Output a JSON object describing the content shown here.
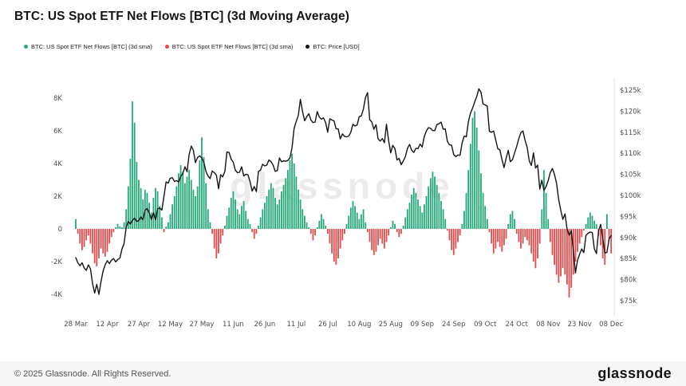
{
  "page": {
    "title": "BTC: US Spot ETF Net Flows [BTC] (3d Moving Average)",
    "watermark": "glassnode"
  },
  "legend": {
    "items": [
      {
        "label": "BTC: US Spot ETF Net Flows [BTC] (3d sma)",
        "color": "#24a878"
      },
      {
        "label": "BTC: US Spot ETF Net Flows [BTC] (3d sma)",
        "color": "#e14b4b"
      },
      {
        "label": "BTC: Price [USD]",
        "color": "#141414"
      }
    ]
  },
  "footer": {
    "copyright": "© 2025 Glassnode. All Rights Reserved.",
    "brand": "glassnode"
  },
  "chart_data": {
    "type": "bar+line",
    "title": "BTC: US Spot ETF Net Flows [BTC] (3d Moving Average)",
    "grid": false,
    "x_axis": {
      "tick_labels": [
        "28 Mar",
        "12 Apr",
        "27 Apr",
        "12 May",
        "27 May",
        "11 Jun",
        "26 Jun",
        "11 Jul",
        "26 Jul",
        "10 Aug",
        "25 Aug",
        "09 Sep",
        "24 Sep",
        "09 Oct",
        "24 Oct",
        "08 Nov",
        "23 Nov",
        "08 Dec"
      ],
      "tick_day_index": [
        0,
        15,
        30,
        45,
        60,
        75,
        90,
        105,
        120,
        135,
        150,
        165,
        180,
        195,
        210,
        225,
        240,
        255
      ],
      "days_total": 256
    },
    "left_axis": {
      "tick_labels": [
        "8K",
        "6K",
        "4K",
        "2K",
        "0",
        "-2K",
        "-4K"
      ],
      "tick_values": [
        8000,
        6000,
        4000,
        2000,
        0,
        -2000,
        -4000
      ]
    },
    "right_axis": {
      "tick_labels": [
        "$125k",
        "$120k",
        "$115k",
        "$110k",
        "$105k",
        "$100k",
        "$95k",
        "$90k",
        "$85k",
        "$80k",
        "$75k"
      ],
      "tick_values_usd_k": [
        125,
        120,
        115,
        110,
        105,
        100,
        95,
        90,
        85,
        80,
        75
      ]
    },
    "series": [
      {
        "name": "BTC: US Spot ETF Net Flows [BTC] (3d sma)",
        "type": "bar",
        "unit": "BTC",
        "positive_color": "#24a878",
        "negative_color": "#e14b4b",
        "values": [
          600,
          -300,
          -900,
          -1300,
          -1100,
          -700,
          -400,
          -900,
          -1500,
          -2100,
          -2300,
          -1800,
          -1200,
          -1500,
          -1700,
          -1400,
          -900,
          -500,
          -200,
          100,
          300,
          150,
          100,
          400,
          1200,
          2600,
          4300,
          7800,
          6500,
          4100,
          3000,
          2500,
          1800,
          2400,
          2200,
          1600,
          1000,
          1900,
          2500,
          2300,
          1400,
          700,
          -200,
          150,
          400,
          900,
          1500,
          2000,
          2600,
          3400,
          3900,
          3500,
          2800,
          3200,
          3600,
          3000,
          2400,
          2000,
          2600,
          4200,
          5600,
          4400,
          2800,
          1200,
          400,
          -300,
          -1200,
          -1800,
          -1500,
          -900,
          -400,
          200,
          800,
          1300,
          1900,
          2300,
          1800,
          1200,
          900,
          1400,
          1700,
          1100,
          600,
          300,
          -200,
          -600,
          -300,
          200,
          700,
          1200,
          1600,
          2000,
          2400,
          2800,
          2500,
          1900,
          1500,
          1800,
          2300,
          2700,
          3100,
          3600,
          4200,
          4600,
          4000,
          3200,
          2400,
          1800,
          1200,
          800,
          400,
          100,
          -300,
          -700,
          -400,
          100,
          500,
          900,
          600,
          200,
          -300,
          -900,
          -1500,
          -2000,
          -2200,
          -1800,
          -1200,
          -700,
          -300,
          300,
          800,
          1300,
          1700,
          1400,
          1000,
          600,
          900,
          1200,
          400,
          -200,
          -800,
          -1300,
          -1600,
          -1400,
          -1000,
          -600,
          -900,
          -1200,
          -800,
          -400,
          100,
          500,
          300,
          -200,
          -500,
          -300,
          200,
          700,
          1200,
          1600,
          2100,
          2500,
          2200,
          1800,
          1400,
          1000,
          1500,
          2000,
          2600,
          3100,
          3500,
          3200,
          2700,
          2200,
          1700,
          1200,
          600,
          -100,
          -700,
          -1300,
          -1600,
          -1200,
          -800,
          -400,
          300,
          1100,
          2200,
          3600,
          5200,
          6800,
          7200,
          6200,
          4800,
          3400,
          2200,
          1400,
          600,
          -200,
          -900,
          -1500,
          -1200,
          -800,
          -1100,
          -1400,
          -1000,
          -600,
          300,
          900,
          1100,
          600,
          -300,
          -800,
          -1200,
          -900,
          -500,
          -700,
          -1000,
          -1500,
          -2000,
          -2400,
          -1800,
          -900,
          1200,
          3600,
          2200,
          600,
          -800,
          -1600,
          -2200,
          -2800,
          -3300,
          -2900,
          -2400,
          -2800,
          -3400,
          -4200,
          -3600,
          -2800,
          -2000,
          -1400,
          -900,
          -500,
          -100,
          300,
          700,
          1000,
          800,
          500,
          300,
          -400,
          -1000,
          -1800,
          -2200,
          900,
          -600,
          -1500
        ]
      },
      {
        "name": "BTC: Price [USD]",
        "type": "line",
        "color": "#141414",
        "values_usd_k": [
          85.2,
          84.0,
          83.3,
          84.0,
          82.8,
          82.2,
          83.5,
          82.6,
          79.0,
          76.8,
          78.9,
          76.5,
          79.5,
          82.0,
          83.5,
          84.5,
          83.8,
          84.6,
          85.0,
          84.2,
          84.8,
          85.1,
          87.3,
          88.5,
          92.5,
          93.8,
          93.2,
          94.1,
          94.6,
          93.8,
          94.0,
          94.9,
          94.2,
          96.5,
          96.9,
          95.8,
          94.3,
          95.9,
          94.2,
          96.8,
          97.0,
          96.5,
          99.7,
          103.2,
          102.9,
          104.1,
          104.2,
          103.3,
          103.5,
          103.2,
          104.5,
          105.2,
          106.8,
          105.6,
          109.7,
          111.7,
          110.7,
          107.8,
          109.0,
          109.4,
          108.9,
          107.8,
          105.7,
          104.6,
          104.0,
          105.8,
          105.4,
          104.8,
          101.6,
          104.9,
          104.4,
          105.7,
          110.3,
          110.2,
          108.6,
          107.9,
          106.0,
          105.4,
          105.5,
          106.8,
          104.6,
          105.0,
          104.9,
          103.3,
          101.0,
          102.1,
          100.9,
          105.7,
          106.0,
          107.4,
          107.0,
          107.2,
          108.4,
          108.0,
          107.2,
          105.7,
          105.9,
          108.9,
          108.0,
          108.2,
          108.1,
          108.3,
          108.9,
          111.3,
          115.9,
          117.6,
          119.0,
          122.8,
          119.9,
          117.7,
          118.7,
          119.4,
          117.9,
          117.3,
          117.4,
          119.9,
          118.6,
          118.1,
          118.4,
          117.3,
          115.0,
          118.2,
          117.9,
          117.7,
          115.8,
          115.8,
          113.4,
          114.6,
          114.0,
          113.9,
          114.1,
          115.0,
          116.9,
          116.5,
          116.7,
          118.7,
          118.9,
          120.5,
          123.3,
          124.4,
          118.0,
          117.4,
          115.7,
          116.8,
          113.4,
          112.9,
          113.5,
          112.5,
          116.9,
          113.0,
          110.1,
          111.9,
          111.1,
          108.4,
          108.8,
          107.3,
          108.2,
          109.2,
          111.2,
          112.1,
          110.7,
          110.2,
          111.2,
          111.1,
          112.2,
          111.5,
          114.0,
          115.3,
          116.1,
          115.9,
          115.4,
          115.4,
          116.8,
          117.0,
          117.4,
          115.7,
          115.8,
          112.8,
          112.0,
          111.9,
          109.7,
          109.2,
          109.6,
          109.5,
          112.4,
          114.1,
          113.9,
          117.5,
          119.5,
          120.7,
          122.2,
          123.5,
          125.3,
          124.5,
          121.7,
          121.5,
          121.2,
          115.2,
          115.0,
          115.3,
          113.2,
          111.1,
          110.8,
          108.5,
          106.6,
          108.9,
          110.7,
          108.0,
          108.5,
          110.1,
          111.6,
          113.5,
          114.9,
          115.3,
          113.1,
          111.4,
          108.2,
          107.1,
          110.1,
          106.5,
          107.2,
          101.5,
          103.6,
          101.2,
          102.1,
          103.5,
          105.4,
          106.4,
          105.0,
          102.9,
          99.0,
          96.5,
          94.3,
          95.6,
          92.0,
          90.5,
          91.6,
          86.9,
          81.6,
          84.6,
          86.1,
          87.3,
          86.4,
          90.5,
          91.0,
          91.3,
          91.2,
          87.3,
          86.2,
          91.6,
          93.1,
          89.8,
          86.3,
          86.5,
          89.6,
          90.5
        ]
      }
    ]
  }
}
